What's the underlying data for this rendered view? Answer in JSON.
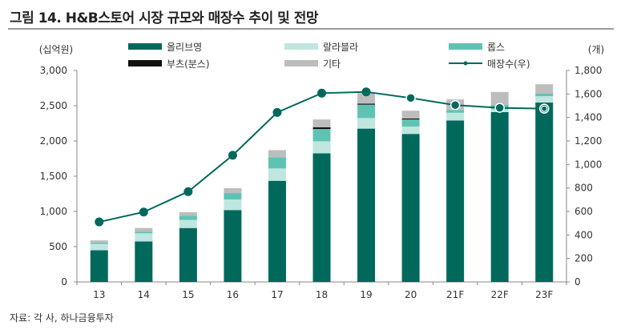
{
  "title": "그림 14. H&B스토어 시장 규모와 매장수 추이 및 전망",
  "source": "자료: 각 사, 하나금융투자",
  "chart_data": {
    "type": "bar",
    "stacked": true,
    "categories": [
      "13",
      "14",
      "15",
      "16",
      "17",
      "18",
      "19",
      "20",
      "21F",
      "22F",
      "23F"
    ],
    "y_left": {
      "label": "(십억원)",
      "range": [
        0,
        3000
      ],
      "ticks": [
        "0",
        "500",
        "1,000",
        "1,500",
        "2,000",
        "2,500",
        "3,000"
      ]
    },
    "y_right": {
      "label": "(개)",
      "range": [
        0,
        1800
      ],
      "ticks": [
        "0",
        "200",
        "400",
        "600",
        "800",
        "1,000",
        "1,200",
        "1,400",
        "1,600",
        "1,800"
      ]
    },
    "series": [
      {
        "name": "올리브영",
        "color": "#00695c",
        "values": [
          450,
          575,
          765,
          1020,
          1435,
          1825,
          2175,
          2100,
          2290,
          2410,
          2545
        ]
      },
      {
        "name": "랄라블라",
        "color": "#bfe6df",
        "values": [
          90,
          115,
          115,
          150,
          175,
          170,
          150,
          105,
          110,
          40,
          90
        ]
      },
      {
        "name": "롭스",
        "color": "#5fc3b4",
        "values": [
          20,
          20,
          60,
          95,
          160,
          175,
          190,
          100,
          40,
          65,
          35
        ]
      },
      {
        "name": "부츠(분스)",
        "color": "#111111",
        "values": [
          0,
          0,
          0,
          0,
          0,
          25,
          15,
          15,
          0,
          0,
          0
        ]
      },
      {
        "name": "기타",
        "color": "#bdbdbd",
        "values": [
          30,
          55,
          50,
          65,
          100,
          110,
          150,
          110,
          150,
          180,
          135
        ]
      }
    ],
    "line": {
      "name": "매장수(우)",
      "color": "#00695c",
      "axis": "right",
      "values": [
        511,
        595,
        769,
        1078,
        1443,
        1607,
        1618,
        1566,
        1505,
        1482,
        1475
      ]
    },
    "legend_position": "top",
    "grid": false
  }
}
